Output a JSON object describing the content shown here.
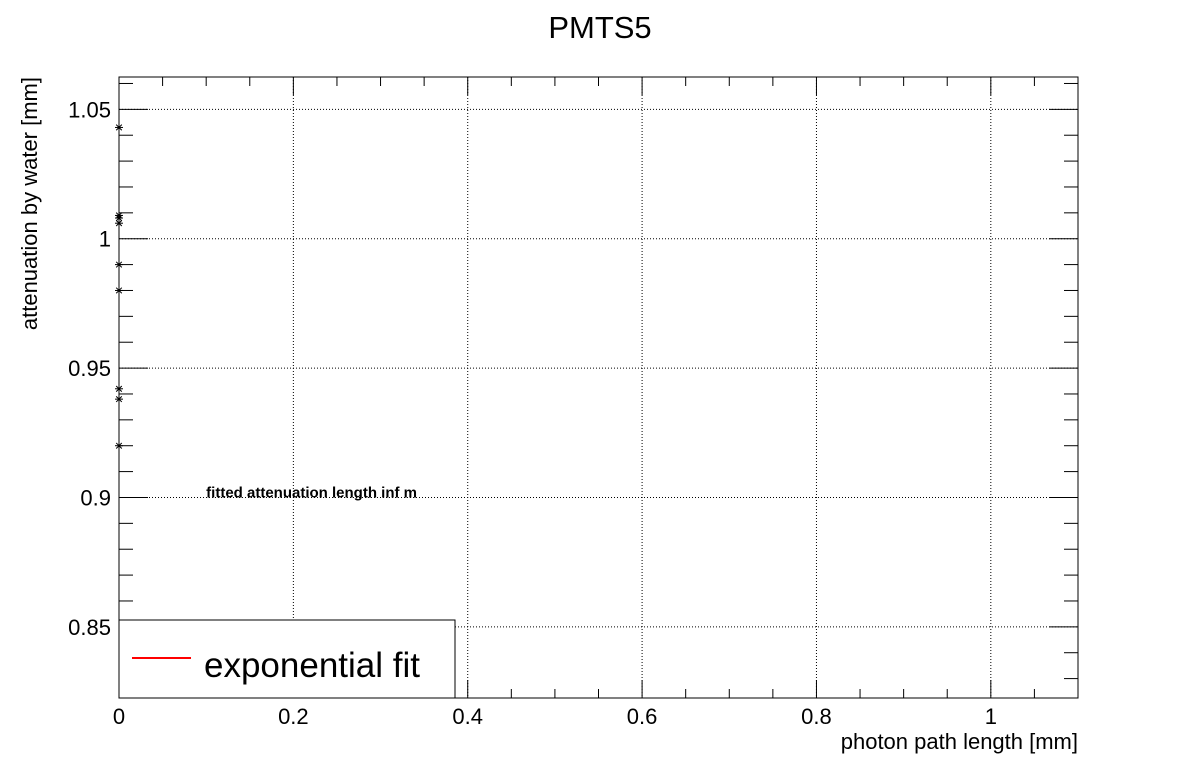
{
  "chart_data": {
    "type": "scatter",
    "title": "PMTS5",
    "xlabel": "photon path length [mm]",
    "ylabel": "attenuation by water [mm]",
    "xlim": [
      0,
      1.1
    ],
    "ylim": [
      0.8225,
      1.0625
    ],
    "x_ticks": [
      0,
      0.2,
      0.4,
      0.6,
      0.8,
      1
    ],
    "x_tick_labels": [
      "0",
      "0.2",
      "0.4",
      "0.6",
      "0.8",
      "1"
    ],
    "y_ticks": [
      0.85,
      0.9,
      0.95,
      1,
      1.05
    ],
    "y_tick_labels": [
      "0.85",
      "0.9",
      "0.95",
      "1",
      "1.05"
    ],
    "grid": true,
    "marker": "star",
    "points": [
      {
        "x": 0.0,
        "y": 1.043
      },
      {
        "x": 0.0,
        "y": 1.009
      },
      {
        "x": 0.0,
        "y": 1.008
      },
      {
        "x": 0.0,
        "y": 1.006
      },
      {
        "x": 0.0,
        "y": 0.99
      },
      {
        "x": 0.0,
        "y": 0.98
      },
      {
        "x": 0.0,
        "y": 0.942
      },
      {
        "x": 0.0,
        "y": 0.938
      },
      {
        "x": 0.0,
        "y": 0.92
      }
    ],
    "annotation": {
      "text": "fitted attenuation length  inf m",
      "x": 0.1,
      "y": 0.9
    },
    "legend": {
      "placement": "bottom-left",
      "entries": [
        {
          "label": "exponential fit",
          "color": "#ff0000",
          "style": "line"
        }
      ]
    }
  }
}
